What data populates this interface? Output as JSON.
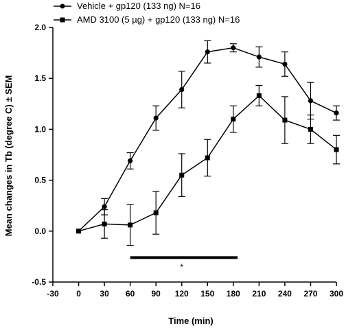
{
  "chart_data": {
    "type": "line",
    "xlabel": "Time (min)",
    "ylabel": "Mean changes in Tb (degree C) ± SEM",
    "xlim": [
      -30,
      300
    ],
    "ylim": [
      -0.5,
      2.0
    ],
    "xticks": [
      -30,
      0,
      30,
      60,
      90,
      120,
      150,
      180,
      210,
      240,
      270,
      300
    ],
    "xtick_labels": [
      "-30",
      "0",
      "30",
      "60",
      "90",
      "120",
      "150",
      "180",
      "210",
      "240",
      "270",
      "300"
    ],
    "yticks": [
      -0.5,
      0.0,
      0.5,
      1.0,
      1.5,
      2.0
    ],
    "ytick_labels": [
      "-0.5",
      "0.0",
      "0.5",
      "1.0",
      "1.5",
      "2.0"
    ],
    "grid": false,
    "legend_position": "top-left",
    "x": [
      0,
      30,
      60,
      90,
      120,
      150,
      180,
      210,
      240,
      270,
      300
    ],
    "series": [
      {
        "name": "Vehicle + gp120 (133 ng) N=16",
        "marker": "circle",
        "values": [
          0.0,
          0.24,
          0.69,
          1.11,
          1.39,
          1.76,
          1.8,
          1.71,
          1.64,
          1.28,
          1.16
        ],
        "errors": [
          0.0,
          0.08,
          0.08,
          0.12,
          0.18,
          0.11,
          0.04,
          0.1,
          0.12,
          0.18,
          0.07
        ]
      },
      {
        "name": "AMD 3100 (5 µg) + gp120 (133 ng) N=16",
        "marker": "square",
        "values": [
          0.0,
          0.07,
          0.06,
          0.18,
          0.55,
          0.72,
          1.1,
          1.33,
          1.09,
          1.0,
          0.8
        ],
        "errors": [
          0.0,
          0.14,
          0.2,
          0.21,
          0.21,
          0.18,
          0.13,
          0.1,
          0.23,
          0.14,
          0.14
        ]
      }
    ],
    "annotations": [
      {
        "type": "bar",
        "x_start": 60,
        "x_end": 185,
        "y": -0.26
      },
      {
        "type": "text",
        "text": "*",
        "x": 120,
        "y": -0.38
      }
    ]
  }
}
